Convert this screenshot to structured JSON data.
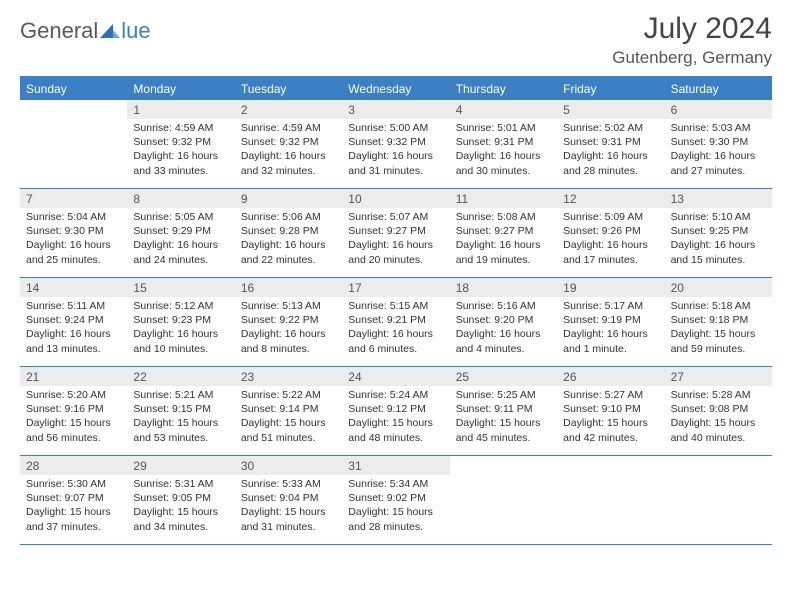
{
  "logo": {
    "part1": "General",
    "part2": "lue"
  },
  "title": "July 2024",
  "location": "Gutenberg, Germany",
  "colors": {
    "header_blue": "#3b7fc4",
    "row_grey": "#ececec",
    "text": "#333333",
    "title_text": "#444444"
  },
  "dow": [
    "Sunday",
    "Monday",
    "Tuesday",
    "Wednesday",
    "Thursday",
    "Friday",
    "Saturday"
  ],
  "weeks": [
    [
      {
        "n": "",
        "sr": "",
        "ss": "",
        "dl": ""
      },
      {
        "n": "1",
        "sr": "Sunrise: 4:59 AM",
        "ss": "Sunset: 9:32 PM",
        "dl": "Daylight: 16 hours and 33 minutes."
      },
      {
        "n": "2",
        "sr": "Sunrise: 4:59 AM",
        "ss": "Sunset: 9:32 PM",
        "dl": "Daylight: 16 hours and 32 minutes."
      },
      {
        "n": "3",
        "sr": "Sunrise: 5:00 AM",
        "ss": "Sunset: 9:32 PM",
        "dl": "Daylight: 16 hours and 31 minutes."
      },
      {
        "n": "4",
        "sr": "Sunrise: 5:01 AM",
        "ss": "Sunset: 9:31 PM",
        "dl": "Daylight: 16 hours and 30 minutes."
      },
      {
        "n": "5",
        "sr": "Sunrise: 5:02 AM",
        "ss": "Sunset: 9:31 PM",
        "dl": "Daylight: 16 hours and 28 minutes."
      },
      {
        "n": "6",
        "sr": "Sunrise: 5:03 AM",
        "ss": "Sunset: 9:30 PM",
        "dl": "Daylight: 16 hours and 27 minutes."
      }
    ],
    [
      {
        "n": "7",
        "sr": "Sunrise: 5:04 AM",
        "ss": "Sunset: 9:30 PM",
        "dl": "Daylight: 16 hours and 25 minutes."
      },
      {
        "n": "8",
        "sr": "Sunrise: 5:05 AM",
        "ss": "Sunset: 9:29 PM",
        "dl": "Daylight: 16 hours and 24 minutes."
      },
      {
        "n": "9",
        "sr": "Sunrise: 5:06 AM",
        "ss": "Sunset: 9:28 PM",
        "dl": "Daylight: 16 hours and 22 minutes."
      },
      {
        "n": "10",
        "sr": "Sunrise: 5:07 AM",
        "ss": "Sunset: 9:27 PM",
        "dl": "Daylight: 16 hours and 20 minutes."
      },
      {
        "n": "11",
        "sr": "Sunrise: 5:08 AM",
        "ss": "Sunset: 9:27 PM",
        "dl": "Daylight: 16 hours and 19 minutes."
      },
      {
        "n": "12",
        "sr": "Sunrise: 5:09 AM",
        "ss": "Sunset: 9:26 PM",
        "dl": "Daylight: 16 hours and 17 minutes."
      },
      {
        "n": "13",
        "sr": "Sunrise: 5:10 AM",
        "ss": "Sunset: 9:25 PM",
        "dl": "Daylight: 16 hours and 15 minutes."
      }
    ],
    [
      {
        "n": "14",
        "sr": "Sunrise: 5:11 AM",
        "ss": "Sunset: 9:24 PM",
        "dl": "Daylight: 16 hours and 13 minutes."
      },
      {
        "n": "15",
        "sr": "Sunrise: 5:12 AM",
        "ss": "Sunset: 9:23 PM",
        "dl": "Daylight: 16 hours and 10 minutes."
      },
      {
        "n": "16",
        "sr": "Sunrise: 5:13 AM",
        "ss": "Sunset: 9:22 PM",
        "dl": "Daylight: 16 hours and 8 minutes."
      },
      {
        "n": "17",
        "sr": "Sunrise: 5:15 AM",
        "ss": "Sunset: 9:21 PM",
        "dl": "Daylight: 16 hours and 6 minutes."
      },
      {
        "n": "18",
        "sr": "Sunrise: 5:16 AM",
        "ss": "Sunset: 9:20 PM",
        "dl": "Daylight: 16 hours and 4 minutes."
      },
      {
        "n": "19",
        "sr": "Sunrise: 5:17 AM",
        "ss": "Sunset: 9:19 PM",
        "dl": "Daylight: 16 hours and 1 minute."
      },
      {
        "n": "20",
        "sr": "Sunrise: 5:18 AM",
        "ss": "Sunset: 9:18 PM",
        "dl": "Daylight: 15 hours and 59 minutes."
      }
    ],
    [
      {
        "n": "21",
        "sr": "Sunrise: 5:20 AM",
        "ss": "Sunset: 9:16 PM",
        "dl": "Daylight: 15 hours and 56 minutes."
      },
      {
        "n": "22",
        "sr": "Sunrise: 5:21 AM",
        "ss": "Sunset: 9:15 PM",
        "dl": "Daylight: 15 hours and 53 minutes."
      },
      {
        "n": "23",
        "sr": "Sunrise: 5:22 AM",
        "ss": "Sunset: 9:14 PM",
        "dl": "Daylight: 15 hours and 51 minutes."
      },
      {
        "n": "24",
        "sr": "Sunrise: 5:24 AM",
        "ss": "Sunset: 9:12 PM",
        "dl": "Daylight: 15 hours and 48 minutes."
      },
      {
        "n": "25",
        "sr": "Sunrise: 5:25 AM",
        "ss": "Sunset: 9:11 PM",
        "dl": "Daylight: 15 hours and 45 minutes."
      },
      {
        "n": "26",
        "sr": "Sunrise: 5:27 AM",
        "ss": "Sunset: 9:10 PM",
        "dl": "Daylight: 15 hours and 42 minutes."
      },
      {
        "n": "27",
        "sr": "Sunrise: 5:28 AM",
        "ss": "Sunset: 9:08 PM",
        "dl": "Daylight: 15 hours and 40 minutes."
      }
    ],
    [
      {
        "n": "28",
        "sr": "Sunrise: 5:30 AM",
        "ss": "Sunset: 9:07 PM",
        "dl": "Daylight: 15 hours and 37 minutes."
      },
      {
        "n": "29",
        "sr": "Sunrise: 5:31 AM",
        "ss": "Sunset: 9:05 PM",
        "dl": "Daylight: 15 hours and 34 minutes."
      },
      {
        "n": "30",
        "sr": "Sunrise: 5:33 AM",
        "ss": "Sunset: 9:04 PM",
        "dl": "Daylight: 15 hours and 31 minutes."
      },
      {
        "n": "31",
        "sr": "Sunrise: 5:34 AM",
        "ss": "Sunset: 9:02 PM",
        "dl": "Daylight: 15 hours and 28 minutes."
      },
      {
        "n": "",
        "sr": "",
        "ss": "",
        "dl": ""
      },
      {
        "n": "",
        "sr": "",
        "ss": "",
        "dl": ""
      },
      {
        "n": "",
        "sr": "",
        "ss": "",
        "dl": ""
      }
    ]
  ]
}
